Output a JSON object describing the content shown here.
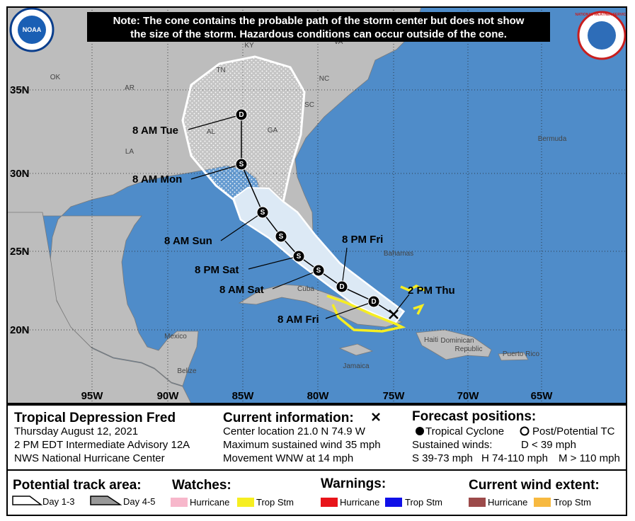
{
  "note": [
    "Note: The cone contains the probable path of the storm center but does not show",
    "the size of the storm. Hazardous conditions can occur outside of the cone."
  ],
  "logos": {
    "noaa": "NOAA",
    "nws": "NATIONAL WEATHER SERVICE"
  },
  "map": {
    "lat_labels": [
      "35N",
      "30N",
      "25N",
      "20N"
    ],
    "lon_labels": [
      "95W",
      "90W",
      "85W",
      "80W",
      "75W",
      "70W",
      "65W"
    ],
    "place_labels": [
      "KY",
      "VA",
      "TN",
      "NC",
      "OK",
      "AR",
      "SC",
      "AL",
      "GA",
      "LA",
      "Bermuda",
      "Bahamas",
      "Cuba",
      "Mexico",
      "Belize",
      "Jamaica",
      "Haiti",
      "Dominican",
      "Republic",
      "Puerto Rico"
    ],
    "time_labels": [
      "8 AM Tue",
      "8 AM Mon",
      "8 AM Sun",
      "8 PM Sat",
      "8 AM Sat",
      "8 PM Fri",
      "8 AM Fri",
      "2 PM Thu"
    ],
    "markers": [
      "D",
      "S",
      "S",
      "S",
      "S",
      "S",
      "D",
      "D"
    ]
  },
  "info": {
    "storm": {
      "title": "Tropical Depression Fred",
      "lines": [
        "Thursday August 12, 2021",
        "2 PM EDT Intermediate Advisory 12A",
        "NWS National Hurricane Center"
      ]
    },
    "current": {
      "title": "Current information:",
      "lines": [
        "Center location 21.0 N 74.9 W",
        "Maximum sustained wind 35 mph",
        "Movement WNW at 14 mph"
      ]
    },
    "forecast": {
      "title": "Forecast positions:",
      "tropical": "Tropical Cyclone",
      "post": "Post/Potential TC",
      "winds": "Sustained winds:",
      "d": "D < 39 mph",
      "s": "S 39-73 mph",
      "h": "H 74-110 mph",
      "m": "M > 110 mph"
    }
  },
  "legend": {
    "track": {
      "title": "Potential track area:",
      "day13": "Day 1-3",
      "day45": "Day 4-5"
    },
    "watches": {
      "title": "Watches:",
      "hurricane": "Hurricane",
      "tropstm": "Trop Stm"
    },
    "warnings": {
      "title": "Warnings:",
      "hurricane": "Hurricane",
      "tropstm": "Trop Stm"
    },
    "wind": {
      "title": "Current wind extent:",
      "hurricane": "Hurricane",
      "tropstm": "Trop Stm"
    }
  }
}
